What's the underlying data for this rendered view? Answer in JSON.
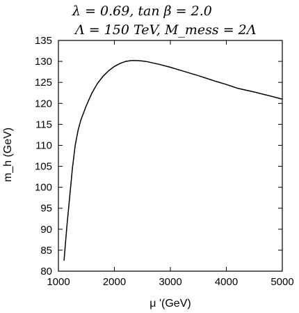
{
  "chart_data": {
    "type": "line",
    "title_lines": [
      "λ = 0.69, tan β = 2.0",
      "Λ = 150 TeV,  M_mess = 2Λ"
    ],
    "xlabel": "μ '(GeV)",
    "ylabel": "m_h (GeV)",
    "xlim": [
      1000,
      5000
    ],
    "ylim": [
      80,
      135
    ],
    "xticks": [
      1000,
      2000,
      3000,
      4000,
      5000
    ],
    "yticks": [
      80,
      85,
      90,
      95,
      100,
      105,
      110,
      115,
      120,
      125,
      130,
      135
    ],
    "grid": false,
    "series": [
      {
        "x": [
          1100,
          1150,
          1200,
          1250,
          1300,
          1350,
          1400,
          1500,
          1600,
          1700,
          1800,
          1900,
          2000,
          2100,
          2200,
          2300,
          2400,
          2500,
          2600,
          2800,
          3000,
          3200,
          3500,
          3800,
          4000,
          4200,
          4500,
          4800,
          5000
        ],
        "y": [
          82.5,
          90.5,
          97.5,
          104.5,
          110,
          113.5,
          116,
          119.5,
          122.5,
          124.8,
          126.5,
          127.8,
          128.8,
          129.5,
          130.0,
          130.2,
          130.2,
          130.1,
          129.9,
          129.3,
          128.6,
          127.8,
          126.6,
          125.3,
          124.5,
          123.6,
          122.7,
          121.7,
          121.0
        ],
        "color": "#000000"
      }
    ]
  }
}
